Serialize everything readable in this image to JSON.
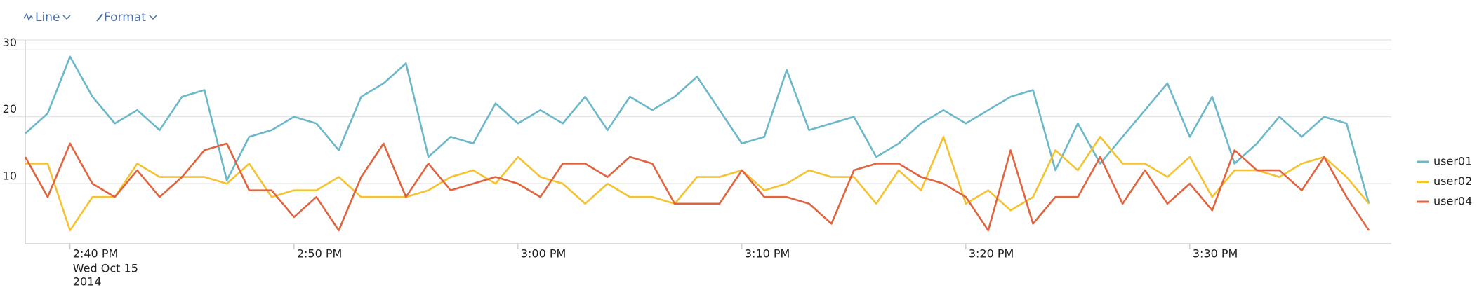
{
  "toolbar": {
    "line_button": "Line",
    "format_button": "Format"
  },
  "chart_data": {
    "type": "line",
    "x": [
      "2014-10-15T14:38",
      "2014-10-15T14:39",
      "2014-10-15T14:40",
      "2014-10-15T14:41",
      "2014-10-15T14:42",
      "2014-10-15T14:43",
      "2014-10-15T14:44",
      "2014-10-15T14:45",
      "2014-10-15T14:46",
      "2014-10-15T14:47",
      "2014-10-15T14:48",
      "2014-10-15T14:49",
      "2014-10-15T14:50",
      "2014-10-15T14:51",
      "2014-10-15T14:52",
      "2014-10-15T14:53",
      "2014-10-15T14:54",
      "2014-10-15T14:55",
      "2014-10-15T14:56",
      "2014-10-15T14:57",
      "2014-10-15T14:58",
      "2014-10-15T14:59",
      "2014-10-15T15:00",
      "2014-10-15T15:01",
      "2014-10-15T15:02",
      "2014-10-15T15:03",
      "2014-10-15T15:04",
      "2014-10-15T15:05",
      "2014-10-15T15:06",
      "2014-10-15T15:07",
      "2014-10-15T15:08",
      "2014-10-15T15:09",
      "2014-10-15T15:10",
      "2014-10-15T15:11",
      "2014-10-15T15:12",
      "2014-10-15T15:13",
      "2014-10-15T15:14",
      "2014-10-15T15:15",
      "2014-10-15T15:16",
      "2014-10-15T15:17",
      "2014-10-15T15:18",
      "2014-10-15T15:19",
      "2014-10-15T15:20",
      "2014-10-15T15:21",
      "2014-10-15T15:22",
      "2014-10-15T15:23",
      "2014-10-15T15:24",
      "2014-10-15T15:25",
      "2014-10-15T15:26",
      "2014-10-15T15:27",
      "2014-10-15T15:28",
      "2014-10-15T15:29",
      "2014-10-15T15:30",
      "2014-10-15T15:31",
      "2014-10-15T15:32",
      "2014-10-15T15:33",
      "2014-10-15T15:34",
      "2014-10-15T15:35",
      "2014-10-15T15:36",
      "2014-10-15T15:37",
      "2014-10-15T15:38"
    ],
    "xlim": [
      "2014-10-15T14:38",
      "2014-10-15T15:39"
    ],
    "xticks": [
      {
        "value": "2014-10-15T14:40",
        "label": "2:40 PM"
      },
      {
        "value": "2014-10-15T14:50",
        "label": "2:50 PM"
      },
      {
        "value": "2014-10-15T15:00",
        "label": "3:00 PM"
      },
      {
        "value": "2014-10-15T15:10",
        "label": "3:10 PM"
      },
      {
        "value": "2014-10-15T15:20",
        "label": "3:20 PM"
      },
      {
        "value": "2014-10-15T15:30",
        "label": "3:30 PM"
      }
    ],
    "x_sublabels": [
      "Wed Oct 15",
      "2014"
    ],
    "ylim": [
      1,
      31.5
    ],
    "yticks": [
      10,
      20,
      30
    ],
    "grid": true,
    "legend": "right",
    "series": [
      {
        "name": "user01",
        "color": "#6cb8c9",
        "values": [
          17.5,
          20.5,
          29,
          23,
          19,
          21,
          18,
          23,
          24,
          10.5,
          17,
          18,
          20,
          19,
          15,
          23,
          25,
          28,
          14,
          17,
          16,
          22,
          19,
          21,
          19,
          23,
          18,
          23,
          21,
          23,
          26,
          21,
          16,
          17,
          27,
          18,
          19,
          20,
          14,
          16,
          19,
          21,
          19,
          21,
          23,
          24,
          12,
          19,
          13,
          17,
          21,
          25,
          17,
          23,
          13,
          16,
          20,
          17,
          20,
          19,
          7
        ]
      },
      {
        "name": "user02",
        "color": "#f5c231",
        "values": [
          13,
          13,
          3,
          8,
          8,
          13,
          11,
          11,
          11,
          10,
          13,
          8,
          9,
          9,
          11,
          8,
          8,
          8,
          9,
          11,
          12,
          10,
          14,
          11,
          10,
          7,
          10,
          8,
          8,
          7,
          11,
          11,
          12,
          9,
          10,
          12,
          11,
          11,
          7,
          12,
          9,
          17,
          7,
          9,
          6,
          8,
          15,
          12,
          17,
          13,
          13,
          11,
          14,
          8,
          12,
          12,
          11,
          13,
          14,
          11,
          7
        ]
      },
      {
        "name": "user04",
        "color": "#e0643f",
        "values": [
          14,
          8,
          16,
          10,
          8,
          12,
          8,
          11,
          15,
          16,
          9,
          9,
          5,
          8,
          3,
          11,
          16,
          8,
          13,
          9,
          10,
          11,
          10,
          8,
          13,
          13,
          11,
          14,
          13,
          7,
          7,
          7,
          12,
          8,
          8,
          7,
          4,
          12,
          13,
          13,
          11,
          10,
          8,
          3,
          15,
          4,
          8,
          8,
          14,
          7,
          12,
          7,
          10,
          6,
          15,
          12,
          12,
          9,
          14,
          8,
          3
        ]
      }
    ]
  }
}
